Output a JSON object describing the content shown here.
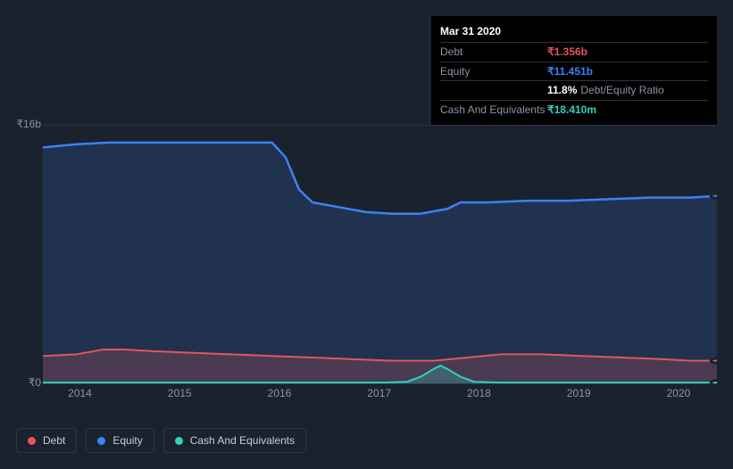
{
  "tooltip": {
    "date": "Mar 31 2020",
    "rows": {
      "debt_label": "Debt",
      "debt_value": "₹1.356b",
      "equity_label": "Equity",
      "equity_value": "₹11.451b",
      "ratio_value": "11.8%",
      "ratio_suffix": "Debt/Equity Ratio",
      "cash_label": "Cash And Equivalents",
      "cash_value": "₹18.410m"
    }
  },
  "chart": {
    "type": "area",
    "background_color": "#1a222d",
    "grid_color": "#2c3644",
    "axis_label_color": "#8a94a6",
    "axis_fontsize": 12,
    "y": {
      "min": 0,
      "max": 16,
      "ticks": [
        {
          "v": 16,
          "label": "₹16b"
        },
        {
          "v": 0,
          "label": "₹0"
        }
      ]
    },
    "x": {
      "labels": [
        "2014",
        "2015",
        "2016",
        "2017",
        "2018",
        "2019",
        "2020"
      ],
      "positions_pct": [
        5.5,
        20.3,
        35.1,
        49.9,
        64.7,
        79.5,
        94.3
      ]
    },
    "series": {
      "equity": {
        "label": "Equity",
        "color": "#3b82f6",
        "fill": "rgba(59,130,246,0.18)",
        "line_width": 2.5,
        "points": [
          [
            0,
            14.6
          ],
          [
            5,
            14.8
          ],
          [
            10,
            14.9
          ],
          [
            15,
            14.9
          ],
          [
            20,
            14.9
          ],
          [
            25,
            14.9
          ],
          [
            30,
            14.9
          ],
          [
            34,
            14.9
          ],
          [
            36,
            14.0
          ],
          [
            38,
            12.0
          ],
          [
            40,
            11.2
          ],
          [
            44,
            10.9
          ],
          [
            48,
            10.6
          ],
          [
            52,
            10.5
          ],
          [
            56,
            10.5
          ],
          [
            60,
            10.8
          ],
          [
            62,
            11.2
          ],
          [
            66,
            11.2
          ],
          [
            72,
            11.3
          ],
          [
            78,
            11.3
          ],
          [
            84,
            11.4
          ],
          [
            90,
            11.5
          ],
          [
            96,
            11.5
          ],
          [
            100,
            11.6
          ]
        ]
      },
      "debt": {
        "label": "Debt",
        "color": "#e15759",
        "fill": "rgba(225,87,89,0.22)",
        "line_width": 2,
        "points": [
          [
            0,
            1.7
          ],
          [
            5,
            1.8
          ],
          [
            9,
            2.1
          ],
          [
            12,
            2.1
          ],
          [
            16,
            2.0
          ],
          [
            22,
            1.9
          ],
          [
            28,
            1.8
          ],
          [
            34,
            1.7
          ],
          [
            40,
            1.6
          ],
          [
            46,
            1.5
          ],
          [
            52,
            1.4
          ],
          [
            58,
            1.4
          ],
          [
            63,
            1.6
          ],
          [
            68,
            1.8
          ],
          [
            74,
            1.8
          ],
          [
            80,
            1.7
          ],
          [
            86,
            1.6
          ],
          [
            92,
            1.5
          ],
          [
            96,
            1.4
          ],
          [
            100,
            1.4
          ]
        ]
      },
      "cash": {
        "label": "Cash And Equivalents",
        "color": "#2dd4bf",
        "fill": "rgba(45,212,191,0.25)",
        "line_width": 2,
        "points": [
          [
            0,
            0.05
          ],
          [
            10,
            0.05
          ],
          [
            20,
            0.05
          ],
          [
            30,
            0.05
          ],
          [
            40,
            0.05
          ],
          [
            50,
            0.05
          ],
          [
            54,
            0.1
          ],
          [
            56,
            0.4
          ],
          [
            58,
            0.9
          ],
          [
            59,
            1.1
          ],
          [
            60,
            0.9
          ],
          [
            62,
            0.4
          ],
          [
            64,
            0.1
          ],
          [
            68,
            0.05
          ],
          [
            76,
            0.05
          ],
          [
            84,
            0.05
          ],
          [
            92,
            0.05
          ],
          [
            100,
            0.05
          ]
        ]
      }
    },
    "end_markers": [
      {
        "series": "equity",
        "color": "#3b82f6"
      },
      {
        "series": "debt",
        "color": "#e15759"
      },
      {
        "series": "cash",
        "color": "#2dd4bf"
      }
    ]
  },
  "legend": {
    "items": [
      {
        "key": "debt",
        "label": "Debt",
        "color": "#e15759"
      },
      {
        "key": "equity",
        "label": "Equity",
        "color": "#3b82f6"
      },
      {
        "key": "cash",
        "label": "Cash And Equivalents",
        "color": "#2dd4bf"
      }
    ]
  }
}
